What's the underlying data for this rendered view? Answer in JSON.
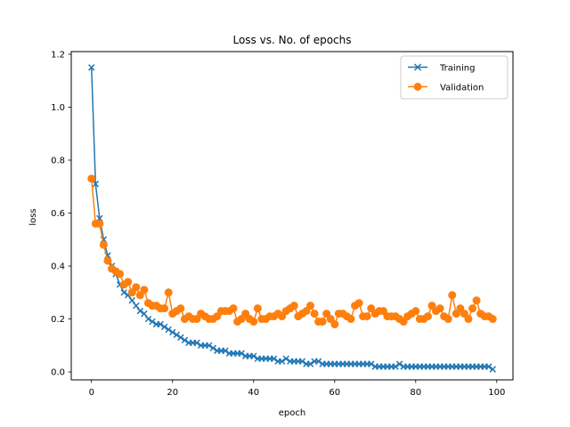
{
  "chart_data": {
    "type": "line",
    "title": "Loss vs. No. of epochs",
    "xlabel": "epoch",
    "ylabel": "loss",
    "xlim": [
      -5,
      104
    ],
    "ylim": [
      -0.03,
      1.21
    ],
    "xticks": [
      0,
      20,
      40,
      60,
      80,
      100
    ],
    "yticks": [
      0.0,
      0.2,
      0.4,
      0.6,
      0.8,
      1.0,
      1.2
    ],
    "xtick_labels": [
      "0",
      "20",
      "40",
      "60",
      "80",
      "100"
    ],
    "ytick_labels": [
      "0.0",
      "0.2",
      "0.4",
      "0.6",
      "0.8",
      "1.0",
      "1.2"
    ],
    "grid": false,
    "legend_position": "top-right",
    "series": [
      {
        "name": "Training",
        "color": "#1f77b4",
        "marker": "x",
        "values": [
          1.15,
          0.71,
          0.58,
          0.5,
          0.44,
          0.4,
          0.37,
          0.33,
          0.3,
          0.29,
          0.27,
          0.25,
          0.23,
          0.22,
          0.2,
          0.19,
          0.18,
          0.18,
          0.17,
          0.16,
          0.15,
          0.14,
          0.13,
          0.12,
          0.11,
          0.11,
          0.11,
          0.1,
          0.1,
          0.1,
          0.09,
          0.08,
          0.08,
          0.08,
          0.07,
          0.07,
          0.07,
          0.07,
          0.06,
          0.06,
          0.06,
          0.05,
          0.05,
          0.05,
          0.05,
          0.05,
          0.04,
          0.04,
          0.05,
          0.04,
          0.04,
          0.04,
          0.04,
          0.03,
          0.03,
          0.04,
          0.04,
          0.03,
          0.03,
          0.03,
          0.03,
          0.03,
          0.03,
          0.03,
          0.03,
          0.03,
          0.03,
          0.03,
          0.03,
          0.03,
          0.02,
          0.02,
          0.02,
          0.02,
          0.02,
          0.02,
          0.03,
          0.02,
          0.02,
          0.02,
          0.02,
          0.02,
          0.02,
          0.02,
          0.02,
          0.02,
          0.02,
          0.02,
          0.02,
          0.02,
          0.02,
          0.02,
          0.02,
          0.02,
          0.02,
          0.02,
          0.02,
          0.02,
          0.02,
          0.01
        ]
      },
      {
        "name": "Validation",
        "color": "#ff7f0e",
        "marker": "o",
        "values": [
          0.73,
          0.56,
          0.56,
          0.48,
          0.42,
          0.39,
          0.38,
          0.37,
          0.33,
          0.34,
          0.3,
          0.32,
          0.29,
          0.31,
          0.26,
          0.25,
          0.25,
          0.24,
          0.24,
          0.3,
          0.22,
          0.23,
          0.24,
          0.2,
          0.21,
          0.2,
          0.2,
          0.22,
          0.21,
          0.2,
          0.2,
          0.21,
          0.23,
          0.23,
          0.23,
          0.24,
          0.19,
          0.2,
          0.22,
          0.2,
          0.19,
          0.24,
          0.2,
          0.2,
          0.21,
          0.21,
          0.22,
          0.21,
          0.23,
          0.24,
          0.25,
          0.21,
          0.22,
          0.23,
          0.25,
          0.22,
          0.19,
          0.19,
          0.22,
          0.2,
          0.18,
          0.22,
          0.22,
          0.21,
          0.2,
          0.25,
          0.26,
          0.21,
          0.21,
          0.24,
          0.22,
          0.23,
          0.23,
          0.21,
          0.21,
          0.21,
          0.2,
          0.19,
          0.21,
          0.22,
          0.23,
          0.2,
          0.2,
          0.21,
          0.25,
          0.23,
          0.24,
          0.21,
          0.2,
          0.29,
          0.22,
          0.24,
          0.22,
          0.2,
          0.24,
          0.27,
          0.22,
          0.21,
          0.21,
          0.2
        ]
      }
    ]
  }
}
